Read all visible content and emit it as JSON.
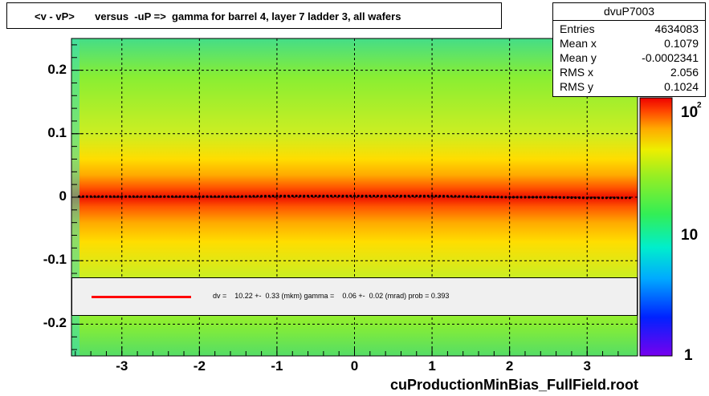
{
  "title": "<v - vP>       versus  -uP =>  gamma for barrel 4, layer 7 ladder 3, all wafers",
  "stats": {
    "name": "dvuP7003",
    "rows": [
      {
        "key": "Entries",
        "value": "4634083"
      },
      {
        "key": "Mean x",
        "value": "0.1079"
      },
      {
        "key": "Mean y",
        "value": "-0.0002341"
      },
      {
        "key": "RMS x",
        "value": "2.056"
      },
      {
        "key": "RMS y",
        "value": "0.1024"
      }
    ]
  },
  "fit_text": "dv =    10.22 +-  0.33 (mkm) gamma =    0.06 +-  0.02 (mrad) prob = 0.393",
  "footer": "cuProductionMinBias_FullField.root",
  "colors": {
    "fit_line": "#ff0000",
    "profile_points": "#000000"
  },
  "chart_data": {
    "type": "heatmap",
    "title": "<v - vP>       versus  -uP =>  gamma for barrel 4, layer 7 ladder 3, all wafers",
    "xlim": [
      -3.65,
      3.65
    ],
    "ylim": [
      -0.25,
      0.25
    ],
    "x_ticks": [
      "-3",
      "-2",
      "-1",
      "0",
      "1",
      "2",
      "3"
    ],
    "y_ticks": [
      "0.2",
      "0.1",
      "0",
      "-0.1",
      "-0.2"
    ],
    "z_scale": "log",
    "z_ticks": [
      "1",
      "10",
      "10^2"
    ],
    "grid": true,
    "band_center_y": 0.0,
    "profile": {
      "x": [
        -3.5,
        -3.0,
        -2.5,
        -2.0,
        -1.5,
        -1.0,
        -0.5,
        0.0,
        0.5,
        1.0,
        1.5,
        2.0,
        2.5,
        3.0,
        3.5
      ],
      "y": [
        0.001,
        0.001,
        0.001,
        0.001,
        0.001,
        0.002,
        0.002,
        0.002,
        0.002,
        0.002,
        0.001,
        0.0,
        0.0,
        -0.001,
        -0.001
      ]
    },
    "fit": {
      "dv_mkm": 10.22,
      "dv_err": 0.33,
      "gamma_mrad": 0.06,
      "gamma_err": 0.02,
      "prob": 0.393
    }
  }
}
